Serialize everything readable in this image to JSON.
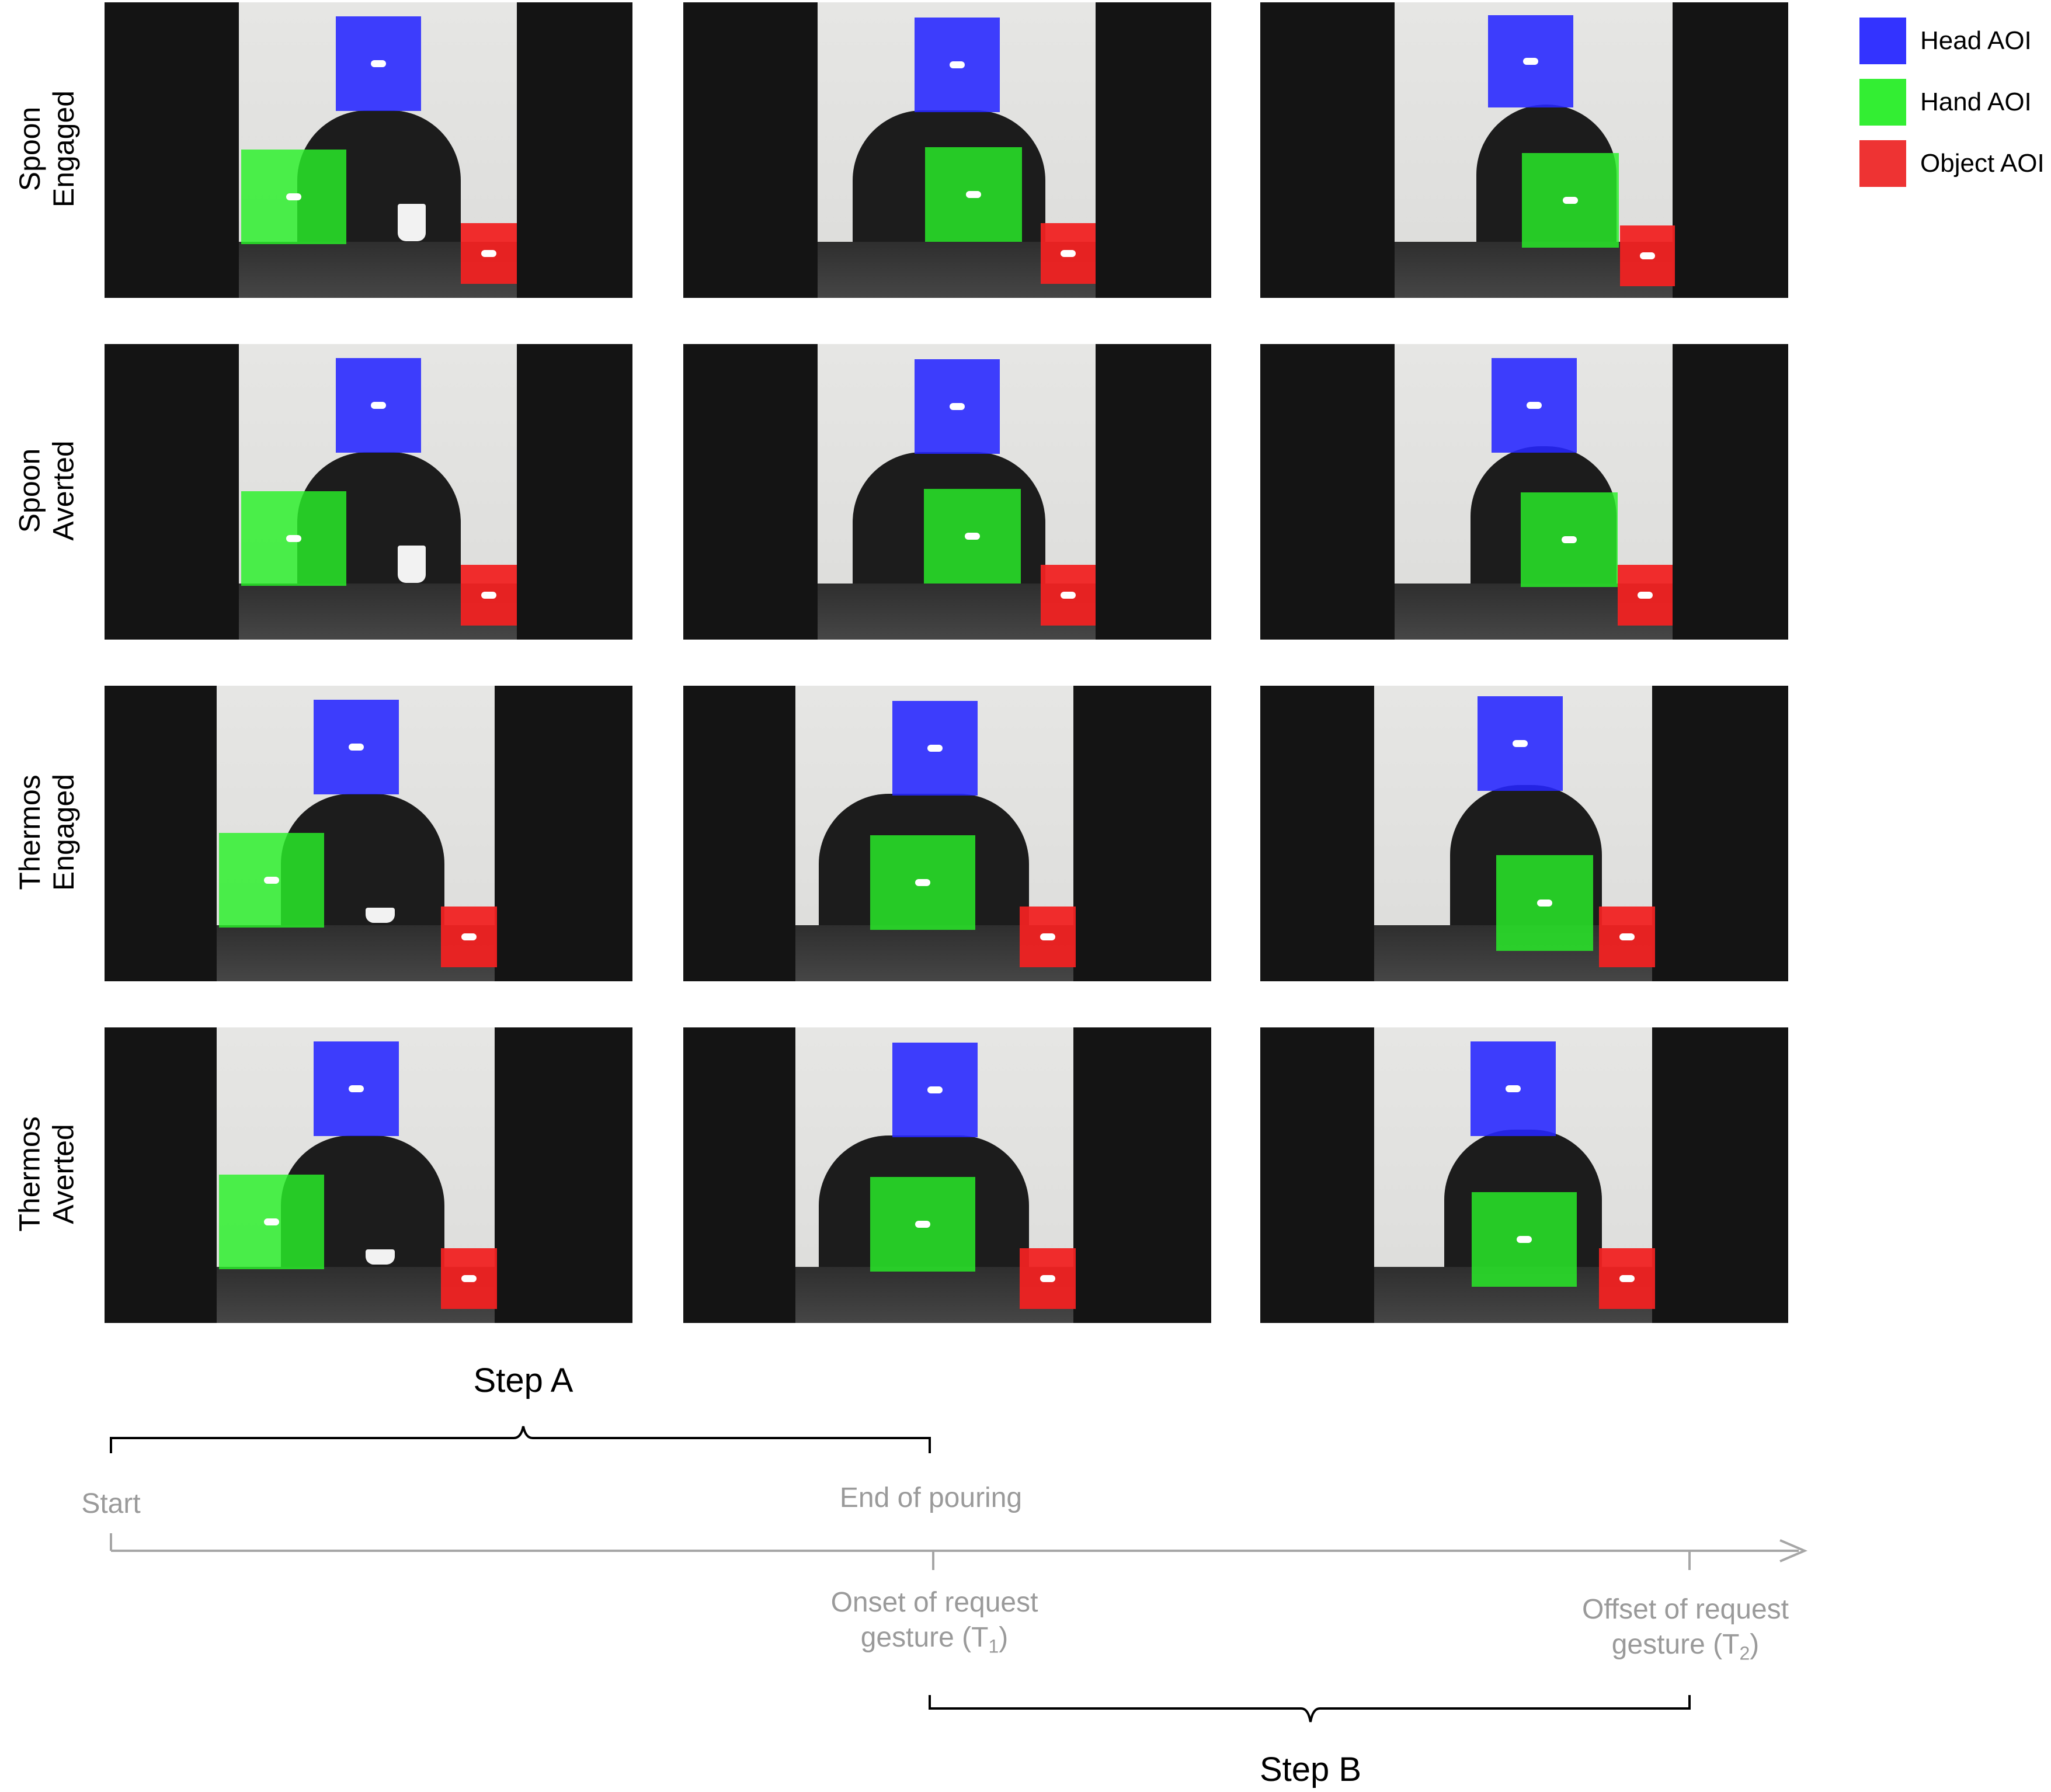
{
  "legend": {
    "items": [
      {
        "label": "Head AOI",
        "color": "#3333ff"
      },
      {
        "label": "Hand AOI",
        "color": "#33ee33"
      },
      {
        "label": "Object AOI",
        "color": "#ee3333"
      }
    ]
  },
  "rows": [
    {
      "label_line1": "Spoon",
      "label_line2": "Engaged"
    },
    {
      "label_line1": "Spoon",
      "label_line2": "Averted"
    },
    {
      "label_line1": "Thermos",
      "label_line2": "Engaged"
    },
    {
      "label_line1": "Thermos",
      "label_line2": "Averted"
    }
  ],
  "timeline": {
    "step_a": "Step A",
    "step_b": "Step B",
    "start": "Start",
    "end_of_pouring": "End of pouring",
    "onset_line1": "Onset of request",
    "onset_line2": "gesture (T",
    "onset_sub": "1",
    "onset_close": ")",
    "offset_line1": "Offset of request",
    "offset_line2": "gesture (T",
    "offset_sub": "2",
    "offset_close": ")"
  }
}
